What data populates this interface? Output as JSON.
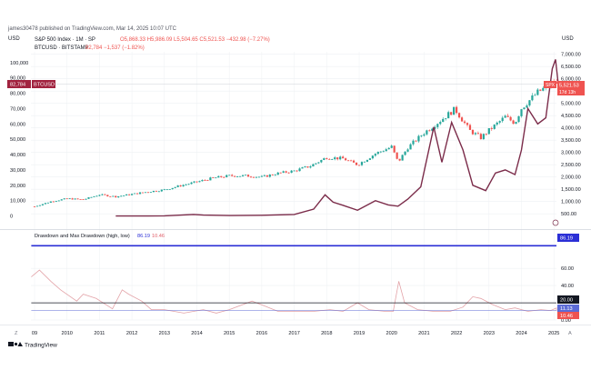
{
  "header": {
    "publisher": "james30478 published on TradingView.com, Mar 14, 2025 10:07 UTC",
    "left_currency": "USD",
    "right_currency": "USD",
    "series1_label": "S&P 500 Index · 1M · SP",
    "series1_ohlc": "O5,868.33  H5,986.09  L5,504.65  C5,521.53  −432.98 (−7.27%)",
    "series2_label": "BTCUSD · BITSTAMP",
    "series2_values": "82,784  −1,537 (−1.82%)"
  },
  "badges": {
    "btc_value": "82,784",
    "btc_name": "BTCUSD",
    "spx_name": "SPX",
    "spx_value": "5,521.53",
    "spx_countdown": "17d 13h",
    "dd_high": "86.19",
    "dd_line": "20.00",
    "dd_mid": "11.13",
    "dd_low": "10.46"
  },
  "indicator": {
    "name": "Drawdown and Max Drawdown (high, low)",
    "value1": "86.19",
    "value2": "10.46"
  },
  "footer": {
    "logo_text": "TradingView"
  },
  "colors": {
    "candle_up": "#26a69a",
    "candle_down": "#ef5350",
    "btc_line": "#7b2c4a",
    "max_drawdown_line": "#2b2fd6",
    "drawdown_line": "#e3a3a8",
    "ref_line": "#131722",
    "grid": "#eef0f3"
  },
  "chart_data": [
    {
      "type": "line",
      "title": "S&P 500 Index · 1M · SP",
      "x_ticks": [
        "09",
        "2010",
        "2011",
        "2012",
        "2013",
        "2014",
        "2015",
        "2016",
        "2017",
        "2018",
        "2019",
        "2020",
        "2021",
        "2022",
        "2023",
        "2024",
        "2025"
      ],
      "right_axis_ticks": [
        "7,000.00",
        "6,500.00",
        "6,000.00",
        "5,500.00",
        "5,000.00",
        "4,500.00",
        "4,000.00",
        "3,500.00",
        "3,000.00",
        "2,500.00",
        "2,000.00",
        "1,500.00",
        "1,000.00",
        "500.00"
      ],
      "left_axis_ticks": [
        "100,000",
        "90,000",
        "80,000",
        "70,000",
        "60,000",
        "50,000",
        "40,000",
        "30,000",
        "20,000",
        "10,000",
        "0"
      ],
      "right_axis_range": [
        100,
        7100
      ],
      "left_axis_range": [
        -5000,
        107000
      ],
      "series": [
        {
          "name": "SPX",
          "axis": "right",
          "style": "candles",
          "x": [
            2009.0,
            2009.5,
            2010.0,
            2010.5,
            2011.0,
            2011.5,
            2012.0,
            2012.5,
            2013.0,
            2013.5,
            2014.0,
            2014.5,
            2015.0,
            2015.5,
            2016.0,
            2016.5,
            2017.0,
            2017.5,
            2018.0,
            2018.5,
            2018.95,
            2019.5,
            2020.0,
            2020.2,
            2020.5,
            2021.0,
            2021.5,
            2021.95,
            2022.4,
            2022.75,
            2023.0,
            2023.5,
            2023.8,
            2024.0,
            2024.5,
            2024.8,
            2025.0,
            2025.2
          ],
          "values": [
            800,
            1000,
            1120,
            1080,
            1280,
            1200,
            1300,
            1400,
            1480,
            1650,
            1800,
            1960,
            2050,
            2050,
            2000,
            2150,
            2250,
            2450,
            2800,
            2750,
            2500,
            2950,
            3230,
            2600,
            3200,
            3800,
            4300,
            4770,
            3900,
            3600,
            3900,
            4450,
            4200,
            4800,
            5450,
            5700,
            5900,
            5521.53
          ]
        },
        {
          "name": "BTCUSD",
          "axis": "left",
          "style": "line",
          "x": [
            2011.5,
            2012.5,
            2013.0,
            2013.9,
            2014.2,
            2015.0,
            2016.0,
            2017.0,
            2017.6,
            2017.95,
            2018.2,
            2018.5,
            2018.95,
            2019.5,
            2019.9,
            2020.2,
            2020.5,
            2020.9,
            2021.3,
            2021.55,
            2021.85,
            2022.2,
            2022.5,
            2022.9,
            2023.2,
            2023.5,
            2023.8,
            2024.0,
            2024.2,
            2024.5,
            2024.75,
            2024.95,
            2025.05,
            2025.15
          ],
          "values": [
            1,
            5,
            100,
            1000,
            600,
            250,
            450,
            1000,
            4500,
            13800,
            9000,
            7000,
            3700,
            10000,
            7200,
            6400,
            11000,
            19000,
            58000,
            35000,
            61000,
            43000,
            20000,
            16500,
            28000,
            30000,
            27000,
            43000,
            70000,
            60000,
            64000,
            96000,
            102000,
            82784
          ]
        }
      ]
    },
    {
      "type": "line",
      "title": "Drawdown and Max Drawdown (high, low)",
      "y_ticks": [
        "60.00",
        "40.00",
        "0.00"
      ],
      "y_range": [
        0,
        95
      ],
      "series": [
        {
          "name": "Max Drawdown",
          "x": [
            2008.9,
            2025.6
          ],
          "values": [
            86.19,
            86.19
          ]
        },
        {
          "name": "Drawdown",
          "x": [
            2008.9,
            2009.15,
            2009.5,
            2009.8,
            2010.3,
            2010.5,
            2010.9,
            2011.4,
            2011.7,
            2011.9,
            2012.3,
            2012.6,
            2013.0,
            2013.6,
            2014.2,
            2014.6,
            2015.0,
            2015.7,
            2016.1,
            2016.5,
            2017.0,
            2017.6,
            2018.1,
            2018.5,
            2018.95,
            2019.3,
            2019.8,
            2020.05,
            2020.22,
            2020.4,
            2020.8,
            2021.3,
            2021.8,
            2022.2,
            2022.5,
            2022.75,
            2023.1,
            2023.5,
            2023.8,
            2024.2,
            2024.6,
            2024.9,
            2025.1,
            2025.2
          ],
          "values": [
            50,
            58,
            45,
            35,
            22,
            30,
            25,
            13,
            35,
            30,
            22,
            12,
            12,
            8,
            12,
            8,
            12,
            22,
            16,
            10,
            10,
            10,
            12,
            10,
            20,
            12,
            10,
            10,
            45,
            20,
            12,
            10,
            10,
            15,
            27,
            25,
            18,
            12,
            14,
            10,
            12,
            11,
            14,
            10.46
          ]
        },
        {
          "name": "Reference",
          "x": [
            2008.9,
            2025.6
          ],
          "values": [
            20,
            20
          ]
        },
        {
          "name": "Low",
          "x": [
            2008.9,
            2025.6
          ],
          "values": [
            11.13,
            11.13
          ]
        }
      ]
    }
  ]
}
